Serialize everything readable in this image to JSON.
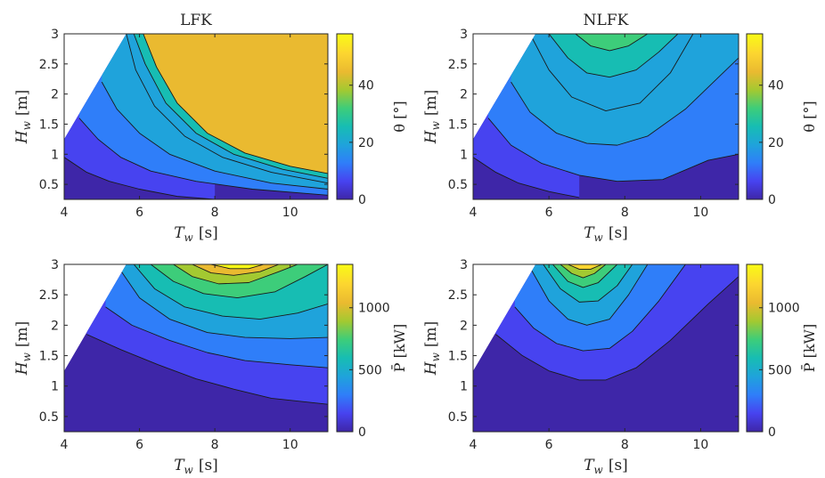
{
  "colors": {
    "parula": [
      "#3e26a8",
      "#4743f0",
      "#2f7ef9",
      "#1fa3db",
      "#17bdb3",
      "#3dcd7a",
      "#a3c931",
      "#eaba30",
      "#fcd530",
      "#f9fb15"
    ]
  },
  "chart_data": [
    {
      "type": "contour",
      "title": "LFK",
      "xlabel": {
        "base": "T",
        "sub": "w",
        "unit": "[s]"
      },
      "ylabel": {
        "base": "H",
        "sub": "w",
        "unit": "[m]"
      },
      "xlim": [
        4,
        11
      ],
      "ylim": [
        0.25,
        3
      ],
      "xticks": [
        "4",
        "6",
        "8",
        "10"
      ],
      "yticks": [
        "0.5",
        "1",
        "1.5",
        "2",
        "2.5",
        "3"
      ],
      "colorbar": {
        "label": "θ [°]",
        "range": [
          0,
          58
        ],
        "ticks": [
          "0",
          "20",
          "40"
        ]
      },
      "levels_count": 11,
      "contour_lines": [
        {
          "level": 5,
          "x": [
            4.0,
            4.6,
            5.2,
            6.0,
            7.0,
            8.0
          ],
          "y": [
            0.95,
            0.7,
            0.55,
            0.42,
            0.3,
            0.25
          ]
        },
        {
          "level": 10,
          "x": [
            4.4,
            4.9,
            5.5,
            6.3,
            7.5,
            9.0,
            11.0
          ],
          "y": [
            1.6,
            1.25,
            0.95,
            0.72,
            0.55,
            0.42,
            0.32
          ]
        },
        {
          "level": 15,
          "x": [
            5.0,
            5.4,
            6.0,
            6.8,
            8.0,
            9.5,
            11.0
          ],
          "y": [
            2.2,
            1.75,
            1.35,
            1.0,
            0.72,
            0.52,
            0.42
          ]
        },
        {
          "level": 20,
          "x": [
            5.65,
            5.9,
            6.4,
            7.2,
            8.2,
            9.5,
            11.0
          ],
          "y": [
            3.0,
            2.4,
            1.8,
            1.3,
            0.95,
            0.7,
            0.52
          ]
        },
        {
          "level": 25,
          "x": [
            5.85,
            6.15,
            6.7,
            7.5,
            8.5,
            9.8,
            11.0
          ],
          "y": [
            3.0,
            2.5,
            1.85,
            1.35,
            1.0,
            0.75,
            0.6
          ]
        },
        {
          "level": 30,
          "x": [
            6.1,
            6.45,
            7.0,
            7.8,
            8.8,
            10.0,
            11.0
          ],
          "y": [
            3.0,
            2.45,
            1.85,
            1.35,
            1.02,
            0.8,
            0.68
          ]
        }
      ]
    },
    {
      "type": "contour",
      "title": "NLFK",
      "xlabel": {
        "base": "T",
        "sub": "w",
        "unit": "[s]"
      },
      "ylabel": {
        "base": "H",
        "sub": "w",
        "unit": "[m]"
      },
      "xlim": [
        4,
        11
      ],
      "ylim": [
        0.25,
        3
      ],
      "xticks": [
        "4",
        "6",
        "8",
        "10"
      ],
      "yticks": [
        "0.5",
        "1",
        "1.5",
        "2",
        "2.5",
        "3"
      ],
      "colorbar": {
        "label": "θ [°]",
        "range": [
          0,
          58
        ],
        "ticks": [
          "0",
          "20",
          "40"
        ]
      },
      "levels_count": 11,
      "contour_lines": [
        {
          "level": 5,
          "x": [
            4.0,
            4.6,
            5.2,
            6.0,
            6.8
          ],
          "y": [
            0.95,
            0.7,
            0.52,
            0.38,
            0.28
          ]
        },
        {
          "level": 10,
          "x": [
            4.4,
            5.0,
            5.8,
            6.8,
            7.8,
            9.0,
            10.2,
            11.0
          ],
          "y": [
            1.6,
            1.15,
            0.85,
            0.65,
            0.55,
            0.58,
            0.9,
            1.0
          ]
        },
        {
          "level": 15,
          "x": [
            5.0,
            5.5,
            6.2,
            7.0,
            7.8,
            8.6,
            9.6,
            11.0
          ],
          "y": [
            2.2,
            1.7,
            1.35,
            1.18,
            1.15,
            1.3,
            1.75,
            2.6
          ]
        },
        {
          "level": 20,
          "x": [
            5.5,
            6.0,
            6.6,
            7.5,
            8.4,
            9.2,
            9.8
          ],
          "y": [
            3.0,
            2.4,
            1.95,
            1.72,
            1.85,
            2.35,
            3.0
          ]
        },
        {
          "level": 25,
          "x": [
            6.0,
            6.5,
            7.0,
            7.6,
            8.3,
            8.9,
            9.4
          ],
          "y": [
            3.0,
            2.6,
            2.35,
            2.28,
            2.4,
            2.7,
            3.0
          ]
        },
        {
          "level": 30,
          "x": [
            6.7,
            7.1,
            7.6,
            8.1,
            8.6
          ],
          "y": [
            3.0,
            2.8,
            2.72,
            2.8,
            3.0
          ]
        }
      ]
    },
    {
      "type": "contour",
      "title": "",
      "xlabel": {
        "base": "T",
        "sub": "w",
        "unit": "[s]"
      },
      "ylabel": {
        "base": "H",
        "sub": "w",
        "unit": "[m]"
      },
      "xlim": [
        4,
        11
      ],
      "ylim": [
        0.25,
        3
      ],
      "xticks": [
        "4",
        "6",
        "8",
        "10"
      ],
      "yticks": [
        "0.5",
        "1",
        "1.5",
        "2",
        "2.5",
        "3"
      ],
      "colorbar": {
        "label": "P̄ [kW]",
        "range": [
          0,
          1350
        ],
        "ticks": [
          "0",
          "500",
          "1000"
        ]
      },
      "levels_count": 11,
      "contour_lines": [
        {
          "level": 100,
          "x": [
            4.6,
            5.5,
            6.5,
            7.5,
            8.5,
            9.5,
            11.0
          ],
          "y": [
            1.85,
            1.6,
            1.35,
            1.12,
            0.95,
            0.8,
            0.7
          ]
        },
        {
          "level": 250,
          "x": [
            5.1,
            5.8,
            6.8,
            7.8,
            8.8,
            10.0,
            11.0
          ],
          "y": [
            2.3,
            2.0,
            1.75,
            1.55,
            1.42,
            1.35,
            1.3
          ]
        },
        {
          "level": 400,
          "x": [
            5.5,
            6.0,
            6.8,
            7.8,
            8.8,
            10.0,
            11.0
          ],
          "y": [
            2.9,
            2.45,
            2.1,
            1.88,
            1.8,
            1.78,
            1.8
          ]
        },
        {
          "level": 550,
          "x": [
            5.85,
            6.4,
            7.2,
            8.2,
            9.2,
            10.2,
            11.0
          ],
          "y": [
            3.0,
            2.6,
            2.3,
            2.15,
            2.1,
            2.2,
            2.35
          ]
        },
        {
          "level": 700,
          "x": [
            6.3,
            6.9,
            7.7,
            8.6,
            9.6,
            10.4,
            11.0
          ],
          "y": [
            3.0,
            2.72,
            2.52,
            2.45,
            2.55,
            2.8,
            3.0
          ]
        },
        {
          "level": 850,
          "x": [
            6.9,
            7.4,
            8.1,
            8.9,
            9.7,
            10.2
          ],
          "y": [
            3.0,
            2.8,
            2.68,
            2.7,
            2.88,
            3.0
          ]
        },
        {
          "level": 1000,
          "x": [
            7.4,
            7.9,
            8.5,
            9.2,
            9.7
          ],
          "y": [
            3.0,
            2.86,
            2.82,
            2.88,
            3.0
          ]
        },
        {
          "level": 1150,
          "x": [
            7.9,
            8.4,
            8.9,
            9.3
          ],
          "y": [
            3.0,
            2.93,
            2.93,
            3.0
          ]
        }
      ]
    },
    {
      "type": "contour",
      "title": "",
      "xlabel": {
        "base": "T",
        "sub": "w",
        "unit": "[s]"
      },
      "ylabel": {
        "base": "H",
        "sub": "w",
        "unit": "[m]"
      },
      "xlim": [
        4,
        11
      ],
      "ylim": [
        0.25,
        3
      ],
      "xticks": [
        "4",
        "6",
        "8",
        "10"
      ],
      "yticks": [
        "0.5",
        "1",
        "1.5",
        "2",
        "2.5",
        "3"
      ],
      "colorbar": {
        "label": "P̄ [kW]",
        "range": [
          0,
          1350
        ],
        "ticks": [
          "0",
          "500",
          "1000"
        ]
      },
      "levels_count": 11,
      "contour_lines": [
        {
          "level": 100,
          "x": [
            4.6,
            5.3,
            6.0,
            6.8,
            7.5,
            8.3,
            9.2,
            10.2,
            11.0
          ],
          "y": [
            1.85,
            1.5,
            1.25,
            1.1,
            1.1,
            1.3,
            1.75,
            2.35,
            2.8
          ]
        },
        {
          "level": 250,
          "x": [
            5.1,
            5.6,
            6.2,
            6.9,
            7.6,
            8.2,
            8.9,
            9.6
          ],
          "y": [
            2.3,
            1.95,
            1.7,
            1.58,
            1.62,
            1.9,
            2.4,
            3.0
          ]
        },
        {
          "level": 400,
          "x": [
            5.5,
            6.0,
            6.5,
            7.0,
            7.6,
            8.1,
            8.6
          ],
          "y": [
            2.95,
            2.4,
            2.1,
            2.0,
            2.1,
            2.5,
            3.0
          ]
        },
        {
          "level": 550,
          "x": [
            5.85,
            6.3,
            6.8,
            7.3,
            7.8,
            8.2
          ],
          "y": [
            3.0,
            2.6,
            2.38,
            2.4,
            2.65,
            3.0
          ]
        },
        {
          "level": 700,
          "x": [
            6.1,
            6.5,
            6.9,
            7.3,
            7.8
          ],
          "y": [
            3.0,
            2.72,
            2.62,
            2.7,
            3.0
          ]
        },
        {
          "level": 850,
          "x": [
            6.3,
            6.6,
            6.9,
            7.2,
            7.5
          ],
          "y": [
            3.0,
            2.85,
            2.78,
            2.85,
            3.0
          ]
        },
        {
          "level": 1000,
          "x": [
            6.5,
            6.8,
            7.1,
            7.4
          ],
          "y": [
            3.0,
            2.92,
            2.92,
            3.0
          ]
        }
      ]
    }
  ]
}
